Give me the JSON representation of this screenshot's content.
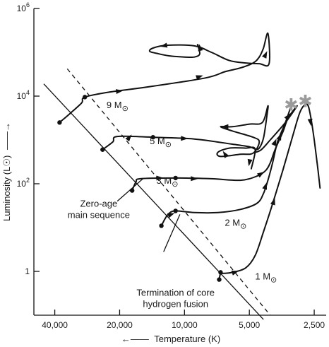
{
  "chart_data": {
    "type": "line",
    "title": "",
    "xlabel": "Temperature (K)",
    "ylabel": "Luminosity (L☉)",
    "x_scale": "log-reversed",
    "y_scale": "log",
    "xlim": [
      50000,
      2200
    ],
    "ylim": [
      0.1,
      1000000
    ],
    "y_ticks": [
      {
        "value": 1,
        "base": "1",
        "exp": ""
      },
      {
        "value": 100,
        "base": "10",
        "exp": "2"
      },
      {
        "value": 10000,
        "base": "10",
        "exp": "4"
      },
      {
        "value": 1000000,
        "base": "10",
        "exp": "6"
      }
    ],
    "x_ticks": [
      {
        "value": 40000,
        "label": "40,000"
      },
      {
        "value": 20000,
        "label": "20,000"
      },
      {
        "value": 10000,
        "label": "10,000"
      },
      {
        "value": 5000,
        "label": "5,000"
      },
      {
        "value": 2500,
        "label": "2,500"
      }
    ],
    "zams_line": [
      [
        45000,
        19000
      ],
      [
        4300,
        0.08
      ]
    ],
    "tams_line": [
      [
        35000,
        42000
      ],
      [
        4000,
        0.1
      ]
    ],
    "series": [
      {
        "label_base": "9 M",
        "label_sub": "⊙",
        "zams_point": [
          38000,
          2500
        ],
        "track": [
          [
            38000,
            2500
          ],
          [
            34000,
            4000
          ],
          [
            30000,
            7000
          ],
          [
            29000,
            9500
          ],
          [
            22000,
            12500
          ],
          [
            15000,
            16000
          ],
          [
            8000,
            26000
          ],
          [
            6500,
            36000
          ],
          [
            5500,
            44000
          ],
          [
            4800,
            57000
          ],
          [
            4500,
            78000
          ],
          [
            4300,
            125000
          ],
          [
            4100,
            270000
          ],
          [
            4050,
            55000
          ],
          [
            4500,
            55000
          ],
          [
            5200,
            57000
          ],
          [
            6200,
            65000
          ],
          [
            7500,
            100000
          ],
          [
            9000,
            140000
          ],
          [
            12000,
            145000
          ],
          [
            14000,
            125000
          ],
          [
            14500,
            105000
          ],
          [
            13500,
            95000
          ],
          [
            11800,
            83000
          ],
          [
            10000,
            78000
          ],
          [
            9000,
            78000
          ],
          [
            8500,
            92000
          ],
          [
            8700,
            150000
          ]
        ],
        "zig_arrows": [
          [
            20000,
            13000
          ],
          [
            8500,
            28000
          ],
          [
            4200,
            90000
          ],
          [
            8500,
            130000
          ],
          [
            12500,
            140000
          ]
        ]
      },
      {
        "label_base": "5 M",
        "label_sub": "⊙",
        "zams_point": [
          24000,
          600
        ],
        "track": [
          [
            24000,
            600
          ],
          [
            21500,
            900
          ],
          [
            20500,
            1200
          ],
          [
            14000,
            1150
          ],
          [
            9000,
            1050
          ],
          [
            6000,
            800
          ],
          [
            5000,
            700
          ],
          [
            4700,
            620
          ],
          [
            4500,
            650
          ],
          [
            4300,
            1100
          ],
          [
            4150,
            3400
          ],
          [
            4100,
            6000
          ],
          [
            4350,
            2500
          ],
          [
            5000,
            2300
          ],
          [
            6000,
            2000
          ],
          [
            6800,
            2000
          ],
          [
            6000,
            1600
          ],
          [
            4800,
            1150
          ],
          [
            4500,
            900
          ],
          [
            4800,
            500
          ],
          [
            5500,
            470
          ],
          [
            6800,
            420
          ],
          [
            7000,
            520
          ],
          [
            6200,
            650
          ],
          [
            5200,
            650
          ],
          [
            4700,
            620
          ],
          [
            4900,
            220
          ]
        ],
        "zig_arrows": [
          [
            18000,
            1150
          ],
          [
            10000,
            1080
          ],
          [
            6500,
            2000
          ],
          [
            6500,
            480
          ],
          [
            5000,
            300
          ]
        ]
      },
      {
        "label_base": "3 M",
        "label_sub": "⊙",
        "zams_point": [
          17500,
          70
        ],
        "track": [
          [
            17500,
            70
          ],
          [
            16800,
            110
          ],
          [
            16000,
            130
          ],
          [
            11000,
            135
          ],
          [
            7500,
            130
          ],
          [
            5500,
            120
          ],
          [
            4600,
            150
          ],
          [
            4200,
            200
          ],
          [
            4000,
            300
          ],
          [
            3800,
            600
          ],
          [
            3500,
            1500
          ],
          [
            3300,
            3200
          ],
          [
            3000,
            6000
          ],
          [
            3400,
            2500
          ],
          [
            4000,
            1000
          ],
          [
            4400,
            600
          ],
          [
            4700,
            520
          ]
        ],
        "zig_arrows": [
          [
            13000,
            135
          ],
          [
            9000,
            130
          ],
          [
            4400,
            170
          ],
          [
            3300,
            3500
          ],
          [
            3800,
            900
          ]
        ]
      },
      {
        "label_base": "2 M",
        "label_sub": "⊙",
        "zams_point": [
          12800,
          11
        ],
        "track": [
          [
            12800,
            11
          ],
          [
            12300,
            16
          ],
          [
            11800,
            21
          ],
          [
            11000,
            24
          ],
          [
            9000,
            22
          ],
          [
            7000,
            22
          ],
          [
            5500,
            26
          ],
          [
            4600,
            36
          ],
          [
            4300,
            60
          ],
          [
            4100,
            120
          ],
          [
            3900,
            300
          ],
          [
            3700,
            900
          ],
          [
            3400,
            2500
          ],
          [
            3200,
            6000
          ]
        ],
        "zig_arrows": [
          [
            11500,
            20
          ],
          [
            4200,
            90
          ],
          [
            3600,
            1200
          ]
        ]
      },
      {
        "label_base": "1 M",
        "label_sub": "⊙",
        "zams_point": [
          6900,
          0.65
        ],
        "track": [
          [
            6900,
            0.65
          ],
          [
            6800,
            0.9
          ],
          [
            6600,
            0.9
          ],
          [
            6000,
            0.95
          ],
          [
            5200,
            1.2
          ],
          [
            4700,
            2.3
          ],
          [
            4300,
            8
          ],
          [
            3900,
            35
          ],
          [
            3500,
            200
          ],
          [
            3150,
            1200
          ],
          [
            2900,
            4500
          ],
          [
            2700,
            6500
          ],
          [
            2600,
            3500
          ],
          [
            2500,
            1000
          ],
          [
            2400,
            200
          ],
          [
            2350,
            80
          ]
        ],
        "tams_point": [
          6800,
          0.95
        ],
        "zig_arrows": [
          [
            5800,
            0.97
          ],
          [
            3850,
            40
          ],
          [
            2600,
            2500
          ]
        ]
      }
    ],
    "label_positions": [
      [
        23000,
        5300
      ],
      [
        14500,
        800
      ],
      [
        13500,
        100
      ],
      [
        6500,
        11
      ],
      [
        4700,
        0.65
      ]
    ],
    "stars": [
      [
        3200,
        6500
      ],
      [
        2750,
        7800
      ]
    ],
    "annotations": [
      {
        "lines": [
          "Zero-age",
          "main sequence"
        ],
        "anchor": [
          25000,
          30
        ],
        "leader": [
          [
            15600,
            130
          ],
          [
            20500,
            40
          ]
        ]
      },
      {
        "lines": [
          "Termination of core",
          "hydrogen fusion"
        ],
        "anchor": [
          11000,
          0.28
        ],
        "leader": [
          [
            12500,
            2.8
          ],
          [
            10500,
            20
          ]
        ]
      }
    ]
  }
}
